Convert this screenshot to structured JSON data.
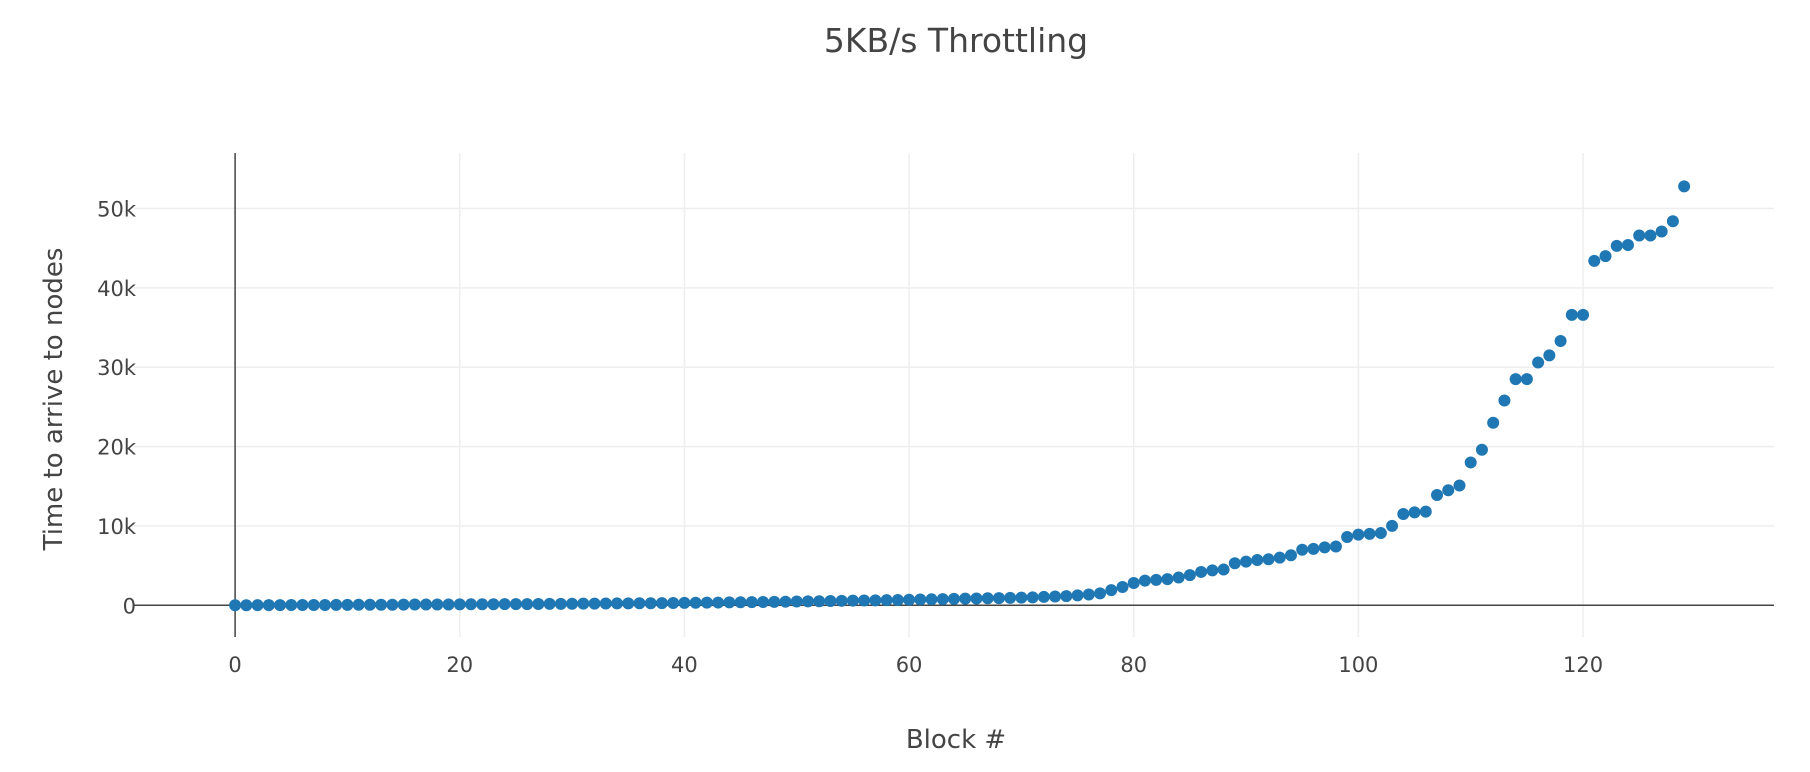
{
  "chart_data": {
    "type": "scatter",
    "title": "5KB/s Throttling",
    "xlabel": "Block #",
    "ylabel": "Time to arrive to nodes",
    "xlim": [
      -9,
      137
    ],
    "ylim": [
      -4000,
      57000
    ],
    "x_ticks": [
      0,
      20,
      40,
      60,
      80,
      100,
      120
    ],
    "y_ticks": [
      0,
      10000,
      20000,
      30000,
      40000,
      50000
    ],
    "y_tick_labels": [
      "0",
      "10k",
      "20k",
      "30k",
      "40k",
      "50k"
    ],
    "grid": true,
    "legend": "none",
    "marker_color": "#1f77b4",
    "series": [
      {
        "x": [
          0,
          1,
          2,
          3,
          4,
          5,
          6,
          7,
          8,
          9,
          10,
          11,
          12,
          13,
          14,
          15,
          16,
          17,
          18,
          19,
          20,
          21,
          22,
          23,
          24,
          25,
          26,
          27,
          28,
          29,
          30,
          31,
          32,
          33,
          34,
          35,
          36,
          37,
          38,
          39,
          40,
          41,
          42,
          43,
          44,
          45,
          46,
          47,
          48,
          49,
          50,
          51,
          52,
          53,
          54,
          55,
          56,
          57,
          58,
          59,
          60,
          61,
          62,
          63,
          64,
          65,
          66,
          67,
          68,
          69,
          70,
          71,
          72,
          73,
          74,
          75,
          76,
          77,
          78,
          79,
          80,
          81,
          82,
          83,
          84,
          85,
          86,
          87,
          88,
          89,
          90,
          91,
          92,
          93,
          94,
          95,
          96,
          97,
          98,
          99,
          100,
          101,
          102,
          103,
          104,
          105,
          106,
          107,
          108,
          109,
          110,
          111,
          112,
          113,
          114,
          115,
          116,
          117,
          118,
          119,
          120,
          121,
          122,
          123,
          124,
          125,
          126,
          127,
          128,
          129
        ],
        "y": [
          0,
          0,
          10,
          20,
          20,
          30,
          30,
          40,
          40,
          50,
          50,
          60,
          60,
          70,
          70,
          80,
          90,
          90,
          100,
          100,
          110,
          120,
          120,
          130,
          140,
          150,
          150,
          160,
          170,
          180,
          190,
          200,
          210,
          220,
          230,
          240,
          250,
          260,
          270,
          290,
          300,
          310,
          330,
          340,
          360,
          380,
          390,
          410,
          430,
          450,
          470,
          490,
          510,
          540,
          560,
          580,
          600,
          620,
          640,
          670,
          700,
          720,
          750,
          780,
          800,
          830,
          850,
          880,
          900,
          930,
          960,
          1000,
          1050,
          1100,
          1150,
          1250,
          1350,
          1500,
          1900,
          2300,
          2800,
          3100,
          3200,
          3300,
          3500,
          3800,
          4200,
          4400,
          4500,
          5300,
          5500,
          5700,
          5800,
          6000,
          6300,
          7000,
          7100,
          7300,
          7400,
          8600,
          8900,
          9000,
          9100,
          10000,
          11500,
          11700,
          11800,
          13900,
          14500,
          15100,
          18000,
          19600,
          23000,
          25800,
          28500,
          28500,
          30600,
          31500,
          33300,
          36600,
          36600,
          43400,
          44000,
          45300,
          45400,
          46600,
          46600,
          47100,
          48400,
          52800
        ]
      }
    ]
  }
}
